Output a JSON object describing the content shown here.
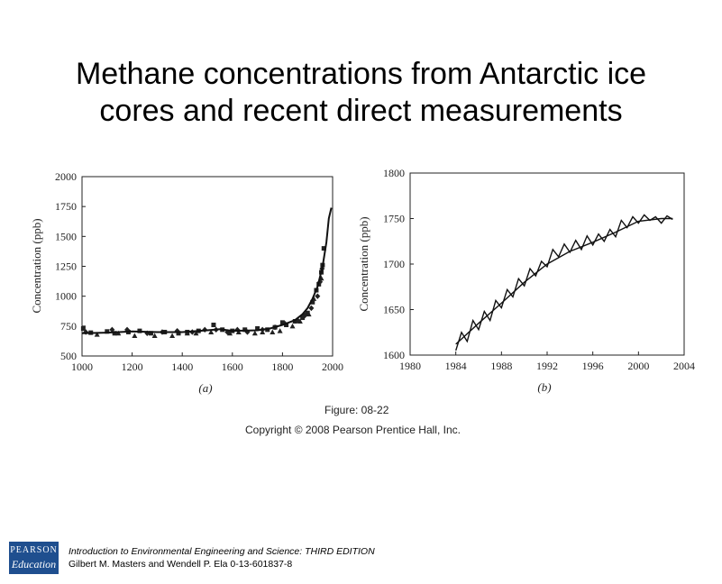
{
  "slide": {
    "title_line1": "Methane concentrations from Antarctic ice",
    "title_line2": "cores and recent direct measurements"
  },
  "figure": {
    "number": "Figure: 08-22",
    "copyright": "Copyright © 2008 Pearson Prentice Hall, Inc."
  },
  "footer": {
    "logo_line1": "PEARSON",
    "logo_line2": "Education",
    "book_title": "Introduction to Environmental Engineering and Science: THIRD EDITION",
    "authors": "Gilbert M. Masters and Wendell P. Ela  0-13-601837-8"
  },
  "chart_data": [
    {
      "type": "scatter",
      "panel_label": "(a)",
      "ylabel": "Concentration (ppb)",
      "xlabel": "",
      "xlim": [
        1000,
        2000
      ],
      "ylim": [
        500,
        2000
      ],
      "x_ticks": [
        1000,
        1200,
        1400,
        1600,
        1800,
        2000
      ],
      "y_ticks": [
        500,
        750,
        1000,
        1250,
        1500,
        1750,
        2000
      ],
      "grid": false,
      "colors": {
        "marks": "#222222",
        "line": "#111111"
      },
      "series": [
        {
          "marker": "square",
          "points": [
            [
              1005,
              730
            ],
            [
              1035,
              695
            ],
            [
              1100,
              705
            ],
            [
              1130,
              690
            ],
            [
              1185,
              700
            ],
            [
              1230,
              710
            ],
            [
              1275,
              690
            ],
            [
              1330,
              700
            ],
            [
              1385,
              690
            ],
            [
              1420,
              700
            ],
            [
              1465,
              710
            ],
            [
              1525,
              760
            ],
            [
              1560,
              720
            ],
            [
              1600,
              710
            ],
            [
              1650,
              720
            ],
            [
              1700,
              730
            ],
            [
              1740,
              720
            ],
            [
              1770,
              740
            ],
            [
              1800,
              780
            ],
            [
              1815,
              760
            ],
            [
              1850,
              790
            ],
            [
              1880,
              820
            ],
            [
              1900,
              860
            ],
            [
              1920,
              950
            ],
            [
              1935,
              1050
            ],
            [
              1945,
              1100
            ],
            [
              1955,
              1200
            ],
            [
              1960,
              1260
            ],
            [
              1965,
              1400
            ]
          ]
        },
        {
          "marker": "triangle",
          "points": [
            [
              1060,
              680
            ],
            [
              1145,
              690
            ],
            [
              1210,
              670
            ],
            [
              1290,
              670
            ],
            [
              1360,
              670
            ],
            [
              1420,
              690
            ],
            [
              1455,
              690
            ],
            [
              1515,
              700
            ],
            [
              1590,
              690
            ],
            [
              1625,
              700
            ],
            [
              1690,
              690
            ],
            [
              1720,
              700
            ],
            [
              1760,
              700
            ],
            [
              1790,
              710
            ],
            [
              1840,
              750
            ],
            [
              1870,
              790
            ],
            [
              1905,
              850
            ],
            [
              1925,
              980
            ],
            [
              1955,
              1150
            ]
          ]
        },
        {
          "marker": "diamond",
          "points": [
            [
              1015,
              700
            ],
            [
              1120,
              720
            ],
            [
              1180,
              720
            ],
            [
              1260,
              690
            ],
            [
              1320,
              700
            ],
            [
              1380,
              710
            ],
            [
              1440,
              700
            ],
            [
              1490,
              720
            ],
            [
              1535,
              720
            ],
            [
              1580,
              700
            ],
            [
              1620,
              720
            ],
            [
              1660,
              700
            ],
            [
              1720,
              720
            ],
            [
              1770,
              740
            ],
            [
              1810,
              770
            ],
            [
              1860,
              800
            ],
            [
              1890,
              840
            ],
            [
              1915,
              900
            ],
            [
              1940,
              1000
            ],
            [
              1950,
              1120
            ],
            [
              1958,
              1230
            ]
          ]
        }
      ],
      "trend": [
        [
          1000,
          690
        ],
        [
          1100,
          695
        ],
        [
          1200,
          705
        ],
        [
          1300,
          700
        ],
        [
          1400,
          700
        ],
        [
          1500,
          715
        ],
        [
          1550,
          725
        ],
        [
          1600,
          710
        ],
        [
          1700,
          715
        ],
        [
          1750,
          730
        ],
        [
          1800,
          760
        ],
        [
          1850,
          800
        ],
        [
          1880,
          850
        ],
        [
          1900,
          900
        ],
        [
          1920,
          980
        ],
        [
          1940,
          1080
        ],
        [
          1960,
          1250
        ],
        [
          1975,
          1450
        ],
        [
          1985,
          1650
        ],
        [
          1995,
          1740
        ]
      ]
    },
    {
      "type": "line",
      "panel_label": "(b)",
      "ylabel": "Concentration (ppb)",
      "xlabel": "",
      "xlim": [
        1980,
        2004
      ],
      "ylim": [
        1600,
        1800
      ],
      "x_ticks": [
        1980,
        1984,
        1988,
        1992,
        1996,
        2000,
        2004
      ],
      "y_ticks": [
        1600,
        1650,
        1700,
        1750,
        1800
      ],
      "grid": false,
      "colors": {
        "line": "#111111"
      },
      "series": [
        {
          "kind": "monthly",
          "x": [
            1984.0,
            1984.5,
            1985.0,
            1985.5,
            1986.0,
            1986.5,
            1987.0,
            1987.5,
            1988.0,
            1988.5,
            1989.0,
            1989.5,
            1990.0,
            1990.5,
            1991.0,
            1991.5,
            1992.0,
            1992.5,
            1993.0,
            1993.5,
            1994.0,
            1994.5,
            1995.0,
            1995.5,
            1996.0,
            1996.5,
            1997.0,
            1997.5,
            1998.0,
            1998.5,
            1999.0,
            1999.5,
            2000.0,
            2000.5,
            2001.0,
            2001.5,
            2002.0,
            2002.5,
            2003.0
          ],
          "values": [
            1605,
            1625,
            1615,
            1638,
            1628,
            1648,
            1638,
            1660,
            1652,
            1672,
            1664,
            1684,
            1676,
            1695,
            1687,
            1703,
            1697,
            1716,
            1708,
            1722,
            1713,
            1726,
            1716,
            1731,
            1721,
            1733,
            1725,
            1738,
            1730,
            1748,
            1740,
            1752,
            1745,
            1754,
            1748,
            1752,
            1745,
            1753,
            1749
          ]
        },
        {
          "kind": "trend",
          "x": [
            1984,
            1986,
            1988,
            1990,
            1992,
            1994,
            1996,
            1998,
            2000,
            2002,
            2003
          ],
          "values": [
            1612,
            1635,
            1657,
            1680,
            1700,
            1714,
            1724,
            1735,
            1747,
            1750,
            1750
          ]
        }
      ]
    }
  ]
}
